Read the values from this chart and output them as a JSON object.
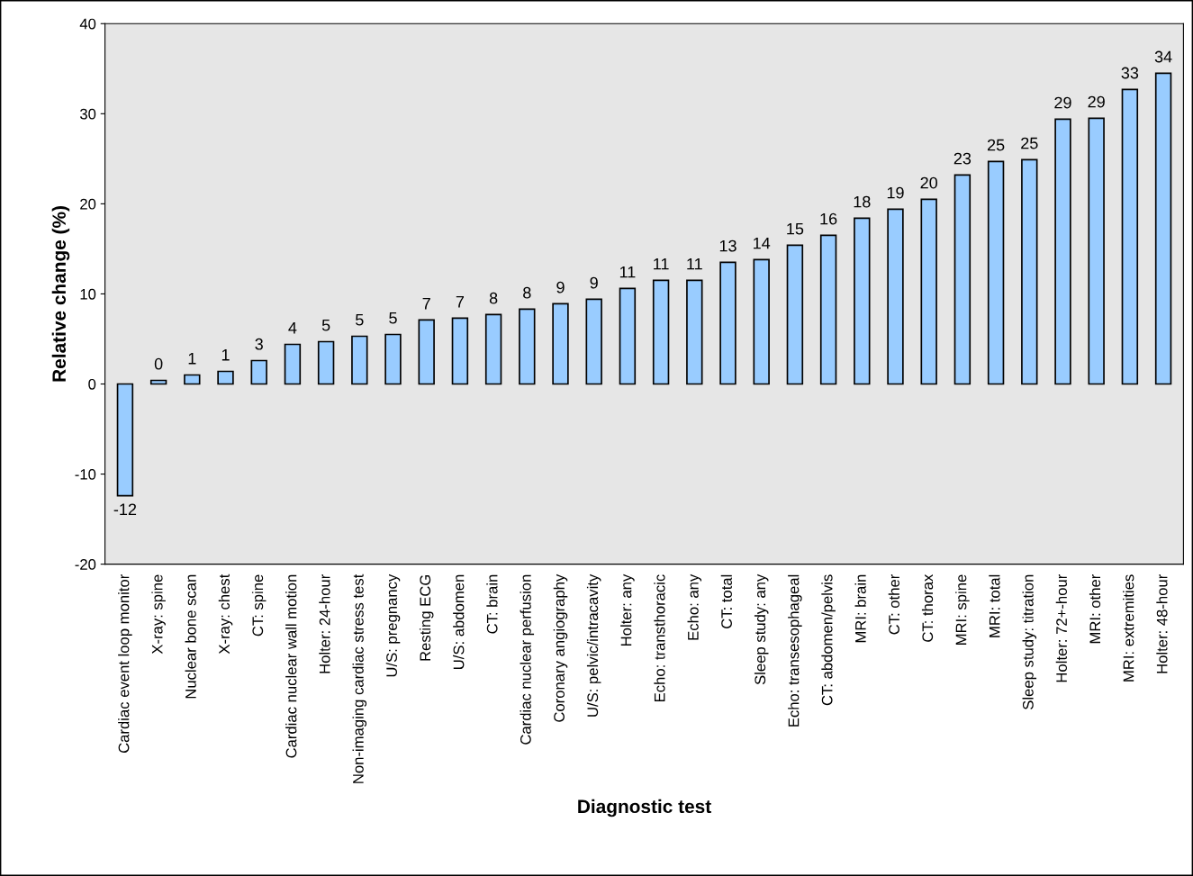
{
  "chart_data": {
    "type": "bar",
    "xlabel": "Diagnostic test",
    "ylabel": "Relative change (%)",
    "categories": [
      "Cardiac event loop monitor",
      "X-ray: spine",
      "Nuclear bone scan",
      "X-ray: chest",
      "CT: spine",
      "Cardiac nuclear wall motion",
      "Holter: 24-hour",
      "Non-imaging cardiac stress test",
      "U/S: pregnancy",
      "Resting ECG",
      "U/S: abdomen",
      "CT: brain",
      "Cardiac nuclear perfusion",
      "Coronary angiography",
      "U/S: pelvic/intracavity",
      "Holter: any",
      "Echo: transthoracic",
      "Echo: any",
      "CT: total",
      "Sleep study: any",
      "Echo: transesophageal",
      "CT: abdomen/pelvis",
      "MRI: brain",
      "CT: other",
      "CT: thorax",
      "MRI: spine",
      "MRI: total",
      "Sleep study: titration",
      "Holter: 72+-hour",
      "MRI: other",
      "MRI: extremities",
      "Holter: 48-hour"
    ],
    "values": [
      -12.4,
      0.4,
      1.0,
      1.4,
      2.6,
      4.4,
      4.7,
      5.3,
      5.5,
      7.1,
      7.3,
      7.7,
      8.3,
      8.9,
      9.4,
      10.6,
      11.5,
      11.5,
      13.5,
      13.8,
      15.4,
      16.5,
      18.4,
      19.4,
      20.5,
      23.2,
      24.7,
      24.9,
      29.4,
      29.5,
      32.7,
      34.5
    ],
    "value_labels": [
      "-12",
      "0",
      "1",
      "1",
      "3",
      "4",
      "5",
      "5",
      "5",
      "7",
      "7",
      "8",
      "8",
      "9",
      "9",
      "11",
      "11",
      "11",
      "13",
      "14",
      "15",
      "16",
      "18",
      "19",
      "20",
      "23",
      "25",
      "25",
      "29",
      "29",
      "33",
      "34"
    ],
    "color": "#99ccff",
    "ylim": [
      -20,
      40
    ],
    "yticks": [
      -20,
      -10,
      0,
      10,
      20,
      30,
      40
    ],
    "grid": false,
    "legend": false
  }
}
